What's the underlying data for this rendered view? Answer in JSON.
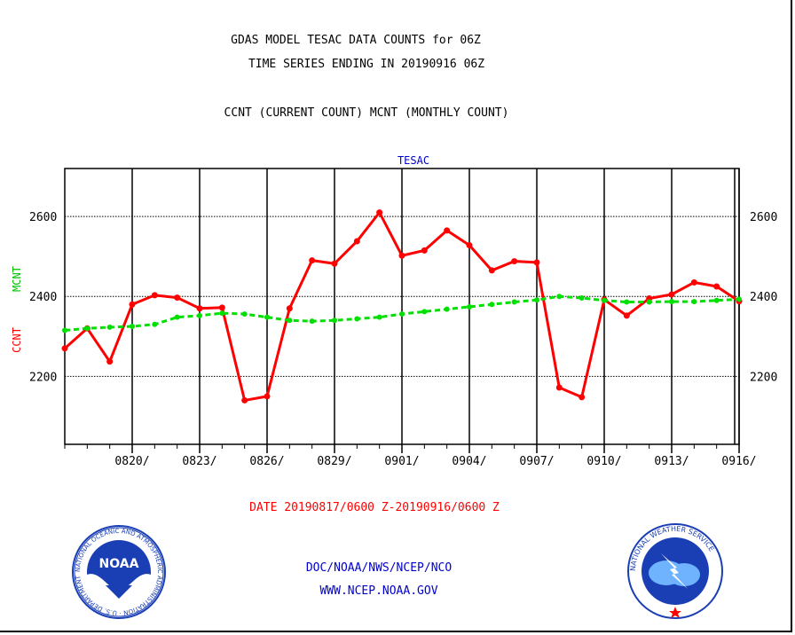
{
  "header": {
    "title_line1": "GDAS MODEL TESAC DATA COUNTS for 06Z",
    "title_line2": "TIME SERIES ENDING IN 20190916 06Z",
    "legend_line": "CCNT (CURRENT COUNT) MCNT (MONTHLY COUNT)"
  },
  "footer": {
    "date_range": "DATE 20190817/0600 Z-20190916/0600 Z",
    "org_line": "DOC/NOAA/NWS/NCEP/NCO",
    "url_line": "WWW.NCEP.NOAA.GOV"
  },
  "logos": {
    "noaa_text": "NOAA",
    "noaa_ring": "NATIONAL OCEANIC AND ATMOSPHERIC ADMINISTRATION · U.S. DEPARTMENT OF COMMERCE",
    "nws_ring": "NATIONAL WEATHER SERVICE"
  },
  "colors": {
    "ccnt": "#ff0000",
    "mcnt": "#00e000",
    "title_blue": "#0000cc",
    "noaa_blue": "#1a3fb5"
  },
  "chart_data": {
    "type": "line",
    "title": "TESAC",
    "ylabel_ccnt": "CCNT",
    "ylabel_mcnt": "MCNT",
    "ylim": [
      2030,
      2720
    ],
    "yticks": [
      2200,
      2400,
      2600
    ],
    "ytick_labels": [
      "2200",
      "2400",
      "2600"
    ],
    "xlim": [
      0,
      30
    ],
    "xtick_positions": [
      3,
      6,
      9,
      12,
      15,
      18,
      21,
      24,
      27,
      30
    ],
    "xtick_labels": [
      "0820/",
      "0823/",
      "0826/",
      "0829/",
      "0901/",
      "0904/",
      "0907/",
      "0910/",
      "0913/",
      "0916/"
    ],
    "x": [
      "2019-08-17",
      "2019-08-18",
      "2019-08-19",
      "2019-08-20",
      "2019-08-21",
      "2019-08-22",
      "2019-08-23",
      "2019-08-24",
      "2019-08-25",
      "2019-08-26",
      "2019-08-27",
      "2019-08-28",
      "2019-08-29",
      "2019-08-30",
      "2019-08-31",
      "2019-09-01",
      "2019-09-02",
      "2019-09-03",
      "2019-09-04",
      "2019-09-05",
      "2019-09-06",
      "2019-09-07",
      "2019-09-08",
      "2019-09-09",
      "2019-09-10",
      "2019-09-11",
      "2019-09-12",
      "2019-09-13",
      "2019-09-14",
      "2019-09-15",
      "2019-09-16"
    ],
    "series": [
      {
        "name": "CCNT",
        "values": [
          2270,
          2320,
          2237,
          2380,
          2403,
          2397,
          2370,
          2372,
          2140,
          2150,
          2370,
          2490,
          2482,
          2538,
          2610,
          2502,
          2515,
          2565,
          2528,
          2465,
          2488,
          2485,
          2172,
          2148,
          2392,
          2352,
          2395,
          2405,
          2435,
          2425,
          2388
        ]
      },
      {
        "name": "MCNT",
        "values": [
          2315,
          2320,
          2323,
          2325,
          2330,
          2348,
          2352,
          2358,
          2356,
          2348,
          2340,
          2338,
          2340,
          2344,
          2348,
          2356,
          2362,
          2368,
          2374,
          2380,
          2386,
          2391,
          2400,
          2396,
          2390,
          2386,
          2386,
          2387,
          2387,
          2390,
          2393
        ]
      }
    ]
  }
}
